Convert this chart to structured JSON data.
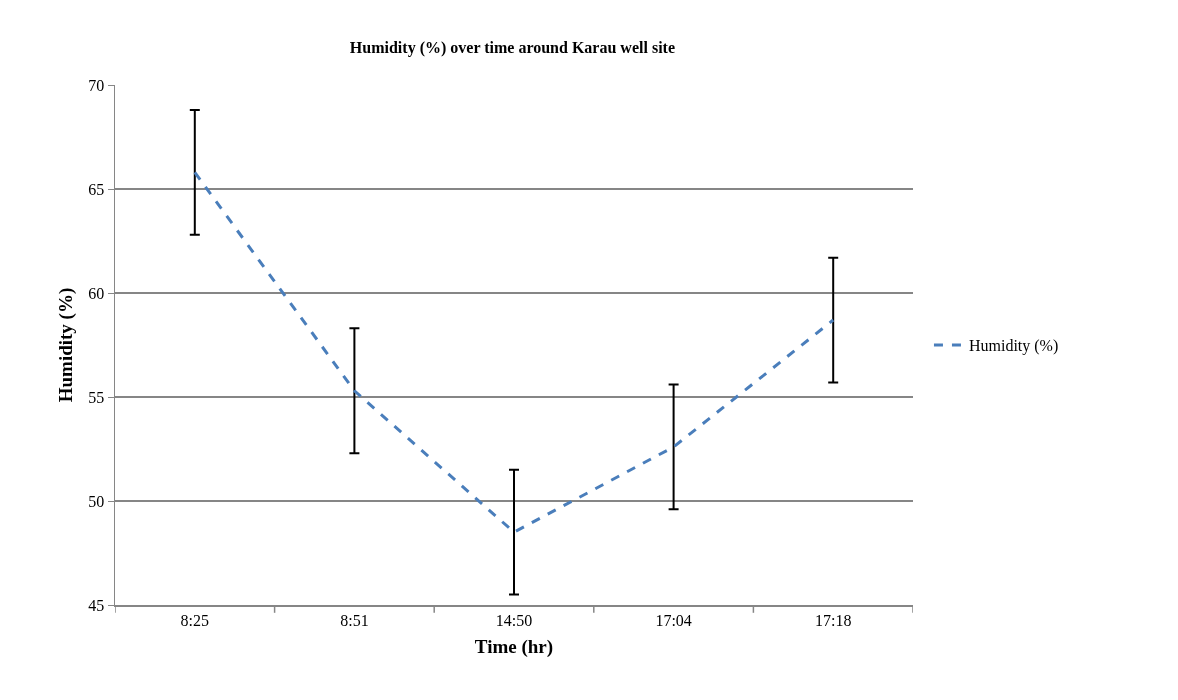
{
  "chart_data": {
    "type": "line",
    "title": "Humidity (%) over time around Karau well site",
    "xlabel": "Time (hr)",
    "ylabel": "Humidity (%)",
    "categories": [
      "8:25",
      "8:51",
      "14:50",
      "17:04",
      "17:18"
    ],
    "series": [
      {
        "name": "Humidity (%)",
        "color": "#4a7ebb",
        "values": [
          65.8,
          55.3,
          48.5,
          52.6,
          58.7
        ],
        "errors": [
          3,
          3,
          3,
          3,
          3
        ]
      }
    ],
    "ylim": [
      45,
      70
    ],
    "yticks": [
      45,
      50,
      55,
      60,
      65,
      70
    ],
    "grid": "y",
    "legend": "right",
    "line_style": "dashed",
    "marker": "none"
  }
}
